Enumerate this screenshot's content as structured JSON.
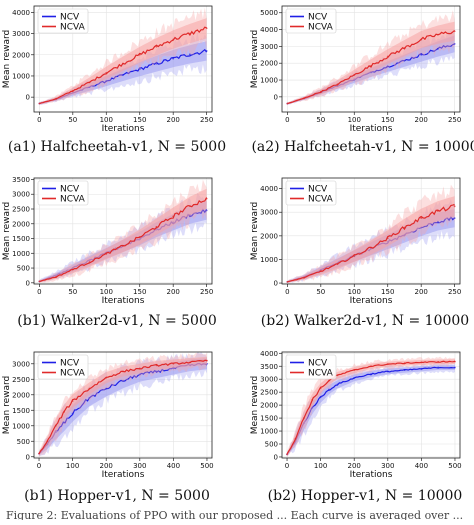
{
  "colors": {
    "ncv_line": "#1f1fe6",
    "ncv_band": "#9d9df0",
    "ncva_line": "#e02a2a",
    "ncva_band": "#f5a3a3"
  },
  "footer_fragment": "Figure 2: Evaluations of PPO with our proposed ... Each curve is averaged over ...",
  "chart_data": [
    {
      "id": "a1",
      "type": "line",
      "title": "",
      "caption": "(a1) Halfcheetah-v1, N = 5000",
      "xlabel": "Iterations",
      "ylabel": "Mean reward",
      "xlim": [
        -8,
        258
      ],
      "ylim": [
        -700,
        4300
      ],
      "xticks": [
        0,
        50,
        100,
        150,
        200,
        250
      ],
      "yticks": [
        0,
        1000,
        2000,
        3000,
        4000
      ],
      "legend": "top-left",
      "grid": true,
      "series": [
        {
          "name": "NCV",
          "x": [
            0,
            25,
            50,
            75,
            100,
            125,
            150,
            175,
            200,
            225,
            250
          ],
          "y": [
            -300,
            -100,
            200,
            480,
            760,
            1050,
            1320,
            1580,
            1820,
            2020,
            2180
          ],
          "spread": [
            60,
            100,
            200,
            300,
            400,
            480,
            550,
            620,
            680,
            720,
            760
          ]
        },
        {
          "name": "NCVA",
          "x": [
            0,
            25,
            50,
            75,
            100,
            125,
            150,
            175,
            200,
            225,
            250
          ],
          "y": [
            -300,
            -80,
            300,
            700,
            1150,
            1580,
            2000,
            2380,
            2720,
            3000,
            3250
          ],
          "spread": [
            60,
            120,
            250,
            380,
            480,
            560,
            620,
            680,
            720,
            760,
            800
          ]
        }
      ]
    },
    {
      "id": "a2",
      "type": "line",
      "title": "",
      "caption": "(a2) Halfcheetah-v1, N = 10000",
      "xlabel": "Iterations",
      "ylabel": "Mean reward",
      "xlim": [
        -8,
        258
      ],
      "ylim": [
        -900,
        5400
      ],
      "xticks": [
        0,
        50,
        100,
        150,
        200,
        250
      ],
      "yticks": [
        0,
        1000,
        2000,
        3000,
        4000,
        5000
      ],
      "legend": "top-left",
      "grid": true,
      "series": [
        {
          "name": "NCV",
          "x": [
            0,
            25,
            50,
            75,
            100,
            125,
            150,
            175,
            200,
            225,
            250
          ],
          "y": [
            -400,
            -100,
            280,
            650,
            1050,
            1450,
            1800,
            2150,
            2500,
            2850,
            3150
          ],
          "spread": [
            60,
            120,
            200,
            280,
            360,
            440,
            520,
            600,
            680,
            760,
            840
          ]
        },
        {
          "name": "NCVA",
          "x": [
            0,
            25,
            50,
            75,
            100,
            125,
            150,
            175,
            200,
            225,
            250
          ],
          "y": [
            -400,
            -80,
            300,
            750,
            1300,
            1850,
            2400,
            2900,
            3400,
            3700,
            3900
          ],
          "spread": [
            60,
            140,
            260,
            400,
            520,
            640,
            720,
            800,
            860,
            900,
            950
          ]
        }
      ]
    },
    {
      "id": "b1",
      "type": "line",
      "title": "",
      "caption": "(b1) Walker2d-v1, N = 5000",
      "xlabel": "Iterations",
      "ylabel": "Mean reward",
      "xlim": [
        -8,
        258
      ],
      "ylim": [
        -40,
        3550
      ],
      "xticks": [
        0,
        50,
        100,
        150,
        200,
        250
      ],
      "yticks": [
        0,
        500,
        1000,
        1500,
        2000,
        2500,
        3000,
        3500
      ],
      "legend": "top-left",
      "grid": true,
      "series": [
        {
          "name": "NCV",
          "x": [
            0,
            25,
            50,
            75,
            100,
            125,
            150,
            175,
            200,
            225,
            250
          ],
          "y": [
            50,
            250,
            500,
            750,
            1000,
            1250,
            1500,
            1800,
            2050,
            2300,
            2450
          ],
          "spread": [
            50,
            120,
            200,
            260,
            300,
            340,
            380,
            420,
            460,
            500,
            520
          ]
        },
        {
          "name": "NCVA",
          "x": [
            0,
            25,
            50,
            75,
            100,
            125,
            150,
            175,
            200,
            225,
            250
          ],
          "y": [
            50,
            200,
            450,
            700,
            980,
            1250,
            1550,
            1900,
            2250,
            2600,
            2850
          ],
          "spread": [
            50,
            120,
            200,
            260,
            300,
            360,
            420,
            460,
            500,
            520,
            560
          ]
        }
      ]
    },
    {
      "id": "b2",
      "type": "line",
      "title": "",
      "caption": "(b2) Walker2d-v1, N = 10000",
      "xlabel": "Iterations",
      "ylabel": "Mean reward",
      "xlim": [
        -8,
        258
      ],
      "ylim": [
        -40,
        4450
      ],
      "xticks": [
        0,
        50,
        100,
        150,
        200,
        250
      ],
      "yticks": [
        0,
        1000,
        2000,
        3000,
        4000
      ],
      "legend": "top-left",
      "grid": true,
      "series": [
        {
          "name": "NCV",
          "x": [
            0,
            25,
            50,
            75,
            100,
            125,
            150,
            175,
            200,
            225,
            250
          ],
          "y": [
            50,
            250,
            550,
            850,
            1150,
            1450,
            1750,
            2050,
            2350,
            2600,
            2750
          ],
          "spread": [
            50,
            140,
            240,
            320,
            400,
            460,
            520,
            560,
            600,
            620,
            640
          ]
        },
        {
          "name": "NCVA",
          "x": [
            0,
            25,
            50,
            75,
            100,
            125,
            150,
            175,
            200,
            225,
            250
          ],
          "y": [
            50,
            230,
            500,
            800,
            1150,
            1500,
            1900,
            2350,
            2750,
            3050,
            3250
          ],
          "spread": [
            50,
            140,
            240,
            340,
            420,
            500,
            560,
            620,
            660,
            700,
            720
          ]
        }
      ]
    },
    {
      "id": "c1",
      "type": "line",
      "title": "",
      "caption": "(b1) Hopper-v1, N = 5000",
      "xlabel": "Iterations",
      "ylabel": "Mean reward",
      "xlim": [
        -15,
        515
      ],
      "ylim": [
        -40,
        3380
      ],
      "xticks": [
        0,
        100,
        200,
        300,
        400,
        500
      ],
      "yticks": [
        0,
        500,
        1000,
        1500,
        2000,
        2500,
        3000
      ],
      "legend": "top-left",
      "grid": true,
      "series": [
        {
          "name": "NCV",
          "x": [
            0,
            25,
            50,
            75,
            100,
            150,
            200,
            250,
            300,
            350,
            400,
            450,
            500
          ],
          "y": [
            100,
            400,
            800,
            1100,
            1400,
            1900,
            2200,
            2450,
            2650,
            2750,
            2850,
            2950,
            3000
          ],
          "spread": [
            80,
            250,
            400,
            450,
            450,
            450,
            420,
            400,
            380,
            350,
            330,
            310,
            300
          ]
        },
        {
          "name": "NCVA",
          "x": [
            0,
            25,
            50,
            75,
            100,
            150,
            200,
            250,
            300,
            350,
            400,
            450,
            500
          ],
          "y": [
            100,
            500,
            1000,
            1450,
            1800,
            2200,
            2550,
            2750,
            2850,
            2950,
            3000,
            3050,
            3100
          ],
          "spread": [
            80,
            250,
            380,
            380,
            360,
            330,
            300,
            270,
            250,
            240,
            230,
            220,
            210
          ]
        }
      ]
    },
    {
      "id": "c2",
      "type": "line",
      "title": "",
      "caption": "(b2) Hopper-v1, N = 10000",
      "xlabel": "Iterations",
      "ylabel": "Mean reward",
      "xlim": [
        -15,
        515
      ],
      "ylim": [
        -40,
        4050
      ],
      "xticks": [
        0,
        100,
        200,
        300,
        400,
        500
      ],
      "yticks": [
        0,
        500,
        1000,
        1500,
        2000,
        2500,
        3000,
        3500,
        4000
      ],
      "legend": "top-left",
      "grid": true,
      "series": [
        {
          "name": "NCV",
          "x": [
            0,
            25,
            50,
            75,
            100,
            125,
            150,
            200,
            250,
            300,
            350,
            400,
            450,
            500
          ],
          "y": [
            100,
            600,
            1300,
            1900,
            2300,
            2600,
            2800,
            3050,
            3200,
            3300,
            3350,
            3400,
            3450,
            3450
          ],
          "spread": [
            80,
            300,
            450,
            400,
            350,
            300,
            260,
            220,
            200,
            180,
            170,
            160,
            150,
            150
          ]
        },
        {
          "name": "NCVA",
          "x": [
            0,
            25,
            50,
            75,
            100,
            125,
            150,
            200,
            250,
            300,
            350,
            400,
            450,
            500
          ],
          "y": [
            100,
            700,
            1500,
            2200,
            2650,
            2950,
            3150,
            3350,
            3500,
            3580,
            3620,
            3650,
            3670,
            3680
          ],
          "spread": [
            80,
            300,
            450,
            400,
            320,
            260,
            220,
            190,
            170,
            160,
            150,
            150,
            150,
            150
          ]
        }
      ]
    }
  ]
}
